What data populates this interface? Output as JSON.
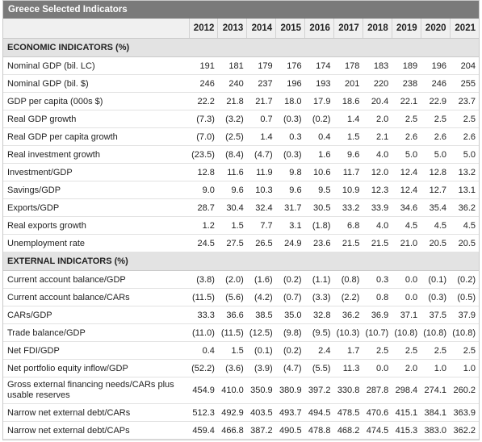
{
  "title": "Greece Selected Indicators",
  "years": [
    "2012",
    "2013",
    "2014",
    "2015",
    "2016",
    "2017",
    "2018",
    "2019",
    "2020",
    "2021"
  ],
  "sections": [
    {
      "heading": "ECONOMIC INDICATORS (%)",
      "rows": [
        {
          "label": "Nominal GDP (bil. LC)",
          "values": [
            "191",
            "181",
            "179",
            "176",
            "174",
            "178",
            "183",
            "189",
            "196",
            "204"
          ]
        },
        {
          "label": "Nominal GDP (bil. $)",
          "values": [
            "246",
            "240",
            "237",
            "196",
            "193",
            "201",
            "220",
            "238",
            "246",
            "255"
          ]
        },
        {
          "label": "GDP per capita (000s $)",
          "values": [
            "22.2",
            "21.8",
            "21.7",
            "18.0",
            "17.9",
            "18.6",
            "20.4",
            "22.1",
            "22.9",
            "23.7"
          ]
        },
        {
          "label": "Real GDP growth",
          "values": [
            "(7.3)",
            "(3.2)",
            "0.7",
            "(0.3)",
            "(0.2)",
            "1.4",
            "2.0",
            "2.5",
            "2.5",
            "2.5"
          ]
        },
        {
          "label": "Real GDP per capita growth",
          "values": [
            "(7.0)",
            "(2.5)",
            "1.4",
            "0.3",
            "0.4",
            "1.5",
            "2.1",
            "2.6",
            "2.6",
            "2.6"
          ]
        },
        {
          "label": "Real investment growth",
          "values": [
            "(23.5)",
            "(8.4)",
            "(4.7)",
            "(0.3)",
            "1.6",
            "9.6",
            "4.0",
            "5.0",
            "5.0",
            "5.0"
          ]
        },
        {
          "label": "Investment/GDP",
          "values": [
            "12.8",
            "11.6",
            "11.9",
            "9.8",
            "10.6",
            "11.7",
            "12.0",
            "12.4",
            "12.8",
            "13.2"
          ]
        },
        {
          "label": "Savings/GDP",
          "values": [
            "9.0",
            "9.6",
            "10.3",
            "9.6",
            "9.5",
            "10.9",
            "12.3",
            "12.4",
            "12.7",
            "13.1"
          ]
        },
        {
          "label": "Exports/GDP",
          "values": [
            "28.7",
            "30.4",
            "32.4",
            "31.7",
            "30.5",
            "33.2",
            "33.9",
            "34.6",
            "35.4",
            "36.2"
          ]
        },
        {
          "label": "Real exports growth",
          "values": [
            "1.2",
            "1.5",
            "7.7",
            "3.1",
            "(1.8)",
            "6.8",
            "4.0",
            "4.5",
            "4.5",
            "4.5"
          ]
        },
        {
          "label": "Unemployment rate",
          "values": [
            "24.5",
            "27.5",
            "26.5",
            "24.9",
            "23.6",
            "21.5",
            "21.5",
            "21.0",
            "20.5",
            "20.5"
          ]
        }
      ]
    },
    {
      "heading": "EXTERNAL INDICATORS (%)",
      "rows": [
        {
          "label": "Current account balance/GDP",
          "values": [
            "(3.8)",
            "(2.0)",
            "(1.6)",
            "(0.2)",
            "(1.1)",
            "(0.8)",
            "0.3",
            "0.0",
            "(0.1)",
            "(0.2)"
          ]
        },
        {
          "label": "Current account balance/CARs",
          "values": [
            "(11.5)",
            "(5.6)",
            "(4.2)",
            "(0.7)",
            "(3.3)",
            "(2.2)",
            "0.8",
            "0.0",
            "(0.3)",
            "(0.5)"
          ]
        },
        {
          "label": "CARs/GDP",
          "values": [
            "33.3",
            "36.6",
            "38.5",
            "35.0",
            "32.8",
            "36.2",
            "36.9",
            "37.1",
            "37.5",
            "37.9"
          ]
        },
        {
          "label": "Trade balance/GDP",
          "values": [
            "(11.0)",
            "(11.5)",
            "(12.5)",
            "(9.8)",
            "(9.5)",
            "(10.3)",
            "(10.7)",
            "(10.8)",
            "(10.8)",
            "(10.8)"
          ]
        },
        {
          "label": "Net FDI/GDP",
          "values": [
            "0.4",
            "1.5",
            "(0.1)",
            "(0.2)",
            "2.4",
            "1.7",
            "2.5",
            "2.5",
            "2.5",
            "2.5"
          ]
        },
        {
          "label": "Net portfolio equity inflow/GDP",
          "values": [
            "(52.2)",
            "(3.6)",
            "(3.9)",
            "(4.7)",
            "(5.5)",
            "11.3",
            "0.0",
            "2.0",
            "1.0",
            "1.0"
          ]
        },
        {
          "label": "Gross external financing needs/CARs plus usable reserves",
          "values": [
            "454.9",
            "410.0",
            "350.9",
            "380.9",
            "397.2",
            "330.8",
            "287.8",
            "298.4",
            "274.1",
            "260.2"
          ],
          "tall": true
        },
        {
          "label": "Narrow net external debt/CARs",
          "values": [
            "512.3",
            "492.9",
            "403.5",
            "493.7",
            "494.5",
            "478.5",
            "470.6",
            "415.1",
            "384.1",
            "363.9"
          ]
        },
        {
          "label": "Narrow net external debt/CAPs",
          "values": [
            "459.4",
            "466.8",
            "387.2",
            "490.5",
            "478.8",
            "468.2",
            "474.5",
            "415.3",
            "383.0",
            "362.2"
          ]
        }
      ]
    }
  ]
}
